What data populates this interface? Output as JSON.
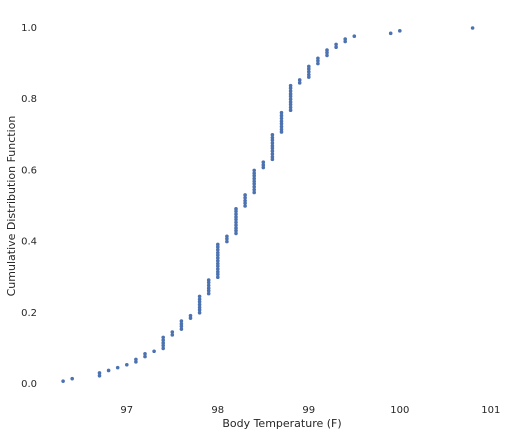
{
  "chart_data": {
    "type": "scatter",
    "x_label": "Body Temperature (F)",
    "y_label": "Cumulative Distribution Function",
    "color": "#4c72b0",
    "grid": false,
    "xlim": [
      96.2,
      101.2
    ],
    "ylim": [
      -0.05,
      1.05
    ],
    "xticks": [
      97,
      98,
      99,
      100,
      101
    ],
    "yticks": [
      {
        "value": 0,
        "label": "0.0"
      },
      0.2,
      0.4,
      0.6,
      0.8,
      {
        "value": 1,
        "label": "1.0"
      }
    ],
    "x": [
      96.3,
      96.4,
      96.7,
      96.7,
      96.8,
      96.9,
      97,
      97.1,
      97.1,
      97.2,
      97.2,
      97.3,
      97.4,
      97.4,
      97.4,
      97.4,
      97.4,
      97.5,
      97.5,
      97.6,
      97.6,
      97.6,
      97.6,
      97.7,
      97.7,
      97.8,
      97.8,
      97.8,
      97.8,
      97.8,
      97.8,
      97.8,
      97.9,
      97.9,
      97.9,
      97.9,
      97.9,
      97.9,
      98,
      98,
      98,
      98,
      98,
      98,
      98,
      98,
      98,
      98,
      98,
      98,
      98,
      98.1,
      98.1,
      98.1,
      98.2,
      98.2,
      98.2,
      98.2,
      98.2,
      98.2,
      98.2,
      98.2,
      98.2,
      98.2,
      98.3,
      98.3,
      98.3,
      98.3,
      98.3,
      98.4,
      98.4,
      98.4,
      98.4,
      98.4,
      98.4,
      98.4,
      98.4,
      98.4,
      98.5,
      98.5,
      98.5,
      98.6,
      98.6,
      98.6,
      98.6,
      98.6,
      98.6,
      98.6,
      98.6,
      98.6,
      98.6,
      98.7,
      98.7,
      98.7,
      98.7,
      98.7,
      98.7,
      98.7,
      98.7,
      98.8,
      98.8,
      98.8,
      98.8,
      98.8,
      98.8,
      98.8,
      98.8,
      98.8,
      98.8,
      98.9,
      98.9,
      99,
      99,
      99,
      99,
      99,
      99.1,
      99.1,
      99.1,
      99.2,
      99.2,
      99.2,
      99.3,
      99.3,
      99.4,
      99.4,
      99.5,
      99.9,
      100,
      100.8
    ],
    "values": [
      0.008,
      0.015,
      0.023,
      0.031,
      0.038,
      0.046,
      0.054,
      0.062,
      0.069,
      0.077,
      0.085,
      0.092,
      0.1,
      0.108,
      0.115,
      0.123,
      0.131,
      0.138,
      0.146,
      0.154,
      0.162,
      0.169,
      0.177,
      0.185,
      0.192,
      0.2,
      0.208,
      0.215,
      0.223,
      0.231,
      0.238,
      0.246,
      0.254,
      0.262,
      0.269,
      0.277,
      0.285,
      0.292,
      0.3,
      0.308,
      0.315,
      0.323,
      0.331,
      0.338,
      0.346,
      0.354,
      0.362,
      0.369,
      0.377,
      0.385,
      0.392,
      0.4,
      0.408,
      0.415,
      0.423,
      0.431,
      0.438,
      0.446,
      0.454,
      0.462,
      0.469,
      0.477,
      0.485,
      0.492,
      0.5,
      0.508,
      0.515,
      0.523,
      0.531,
      0.538,
      0.546,
      0.554,
      0.562,
      0.569,
      0.577,
      0.585,
      0.592,
      0.6,
      0.608,
      0.615,
      0.623,
      0.631,
      0.638,
      0.646,
      0.654,
      0.662,
      0.669,
      0.677,
      0.685,
      0.692,
      0.7,
      0.708,
      0.715,
      0.723,
      0.731,
      0.738,
      0.746,
      0.754,
      0.762,
      0.769,
      0.777,
      0.785,
      0.792,
      0.8,
      0.808,
      0.815,
      0.823,
      0.831,
      0.838,
      0.846,
      0.854,
      0.862,
      0.869,
      0.877,
      0.885,
      0.892,
      0.9,
      0.908,
      0.915,
      0.923,
      0.931,
      0.938,
      0.946,
      0.954,
      0.962,
      0.969,
      0.977,
      0.985,
      0.992,
      1
    ]
  }
}
